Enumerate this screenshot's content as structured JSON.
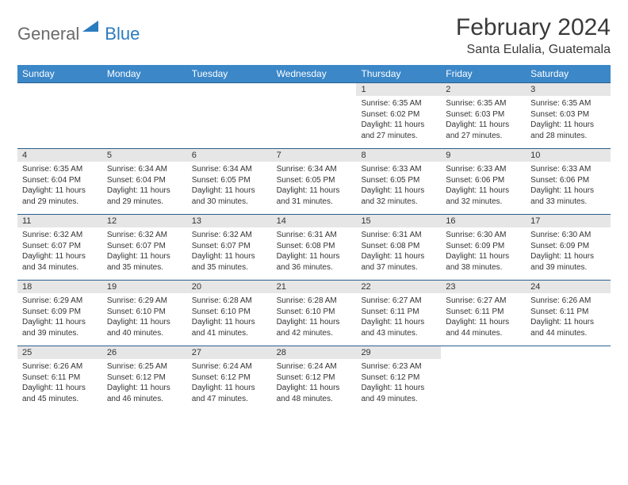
{
  "logo": {
    "part1": "General",
    "part2": "Blue"
  },
  "title": "February 2024",
  "location": "Santa Eulalia, Guatemala",
  "header_bg": "#3b87c8",
  "header_fg": "#ffffff",
  "daynum_bg": "#e6e6e6",
  "row_border": "#2b5f8f",
  "text_color": "#333333",
  "font_size_title": 30,
  "font_size_location": 16,
  "font_size_dow": 12,
  "font_size_day": 10,
  "dow": [
    "Sunday",
    "Monday",
    "Tuesday",
    "Wednesday",
    "Thursday",
    "Friday",
    "Saturday"
  ],
  "weeks": [
    [
      {
        "n": "",
        "sr": "",
        "ss": "",
        "dl": ""
      },
      {
        "n": "",
        "sr": "",
        "ss": "",
        "dl": ""
      },
      {
        "n": "",
        "sr": "",
        "ss": "",
        "dl": ""
      },
      {
        "n": "",
        "sr": "",
        "ss": "",
        "dl": ""
      },
      {
        "n": "1",
        "sr": "Sunrise: 6:35 AM",
        "ss": "Sunset: 6:02 PM",
        "dl": "Daylight: 11 hours and 27 minutes."
      },
      {
        "n": "2",
        "sr": "Sunrise: 6:35 AM",
        "ss": "Sunset: 6:03 PM",
        "dl": "Daylight: 11 hours and 27 minutes."
      },
      {
        "n": "3",
        "sr": "Sunrise: 6:35 AM",
        "ss": "Sunset: 6:03 PM",
        "dl": "Daylight: 11 hours and 28 minutes."
      }
    ],
    [
      {
        "n": "4",
        "sr": "Sunrise: 6:35 AM",
        "ss": "Sunset: 6:04 PM",
        "dl": "Daylight: 11 hours and 29 minutes."
      },
      {
        "n": "5",
        "sr": "Sunrise: 6:34 AM",
        "ss": "Sunset: 6:04 PM",
        "dl": "Daylight: 11 hours and 29 minutes."
      },
      {
        "n": "6",
        "sr": "Sunrise: 6:34 AM",
        "ss": "Sunset: 6:05 PM",
        "dl": "Daylight: 11 hours and 30 minutes."
      },
      {
        "n": "7",
        "sr": "Sunrise: 6:34 AM",
        "ss": "Sunset: 6:05 PM",
        "dl": "Daylight: 11 hours and 31 minutes."
      },
      {
        "n": "8",
        "sr": "Sunrise: 6:33 AM",
        "ss": "Sunset: 6:05 PM",
        "dl": "Daylight: 11 hours and 32 minutes."
      },
      {
        "n": "9",
        "sr": "Sunrise: 6:33 AM",
        "ss": "Sunset: 6:06 PM",
        "dl": "Daylight: 11 hours and 32 minutes."
      },
      {
        "n": "10",
        "sr": "Sunrise: 6:33 AM",
        "ss": "Sunset: 6:06 PM",
        "dl": "Daylight: 11 hours and 33 minutes."
      }
    ],
    [
      {
        "n": "11",
        "sr": "Sunrise: 6:32 AM",
        "ss": "Sunset: 6:07 PM",
        "dl": "Daylight: 11 hours and 34 minutes."
      },
      {
        "n": "12",
        "sr": "Sunrise: 6:32 AM",
        "ss": "Sunset: 6:07 PM",
        "dl": "Daylight: 11 hours and 35 minutes."
      },
      {
        "n": "13",
        "sr": "Sunrise: 6:32 AM",
        "ss": "Sunset: 6:07 PM",
        "dl": "Daylight: 11 hours and 35 minutes."
      },
      {
        "n": "14",
        "sr": "Sunrise: 6:31 AM",
        "ss": "Sunset: 6:08 PM",
        "dl": "Daylight: 11 hours and 36 minutes."
      },
      {
        "n": "15",
        "sr": "Sunrise: 6:31 AM",
        "ss": "Sunset: 6:08 PM",
        "dl": "Daylight: 11 hours and 37 minutes."
      },
      {
        "n": "16",
        "sr": "Sunrise: 6:30 AM",
        "ss": "Sunset: 6:09 PM",
        "dl": "Daylight: 11 hours and 38 minutes."
      },
      {
        "n": "17",
        "sr": "Sunrise: 6:30 AM",
        "ss": "Sunset: 6:09 PM",
        "dl": "Daylight: 11 hours and 39 minutes."
      }
    ],
    [
      {
        "n": "18",
        "sr": "Sunrise: 6:29 AM",
        "ss": "Sunset: 6:09 PM",
        "dl": "Daylight: 11 hours and 39 minutes."
      },
      {
        "n": "19",
        "sr": "Sunrise: 6:29 AM",
        "ss": "Sunset: 6:10 PM",
        "dl": "Daylight: 11 hours and 40 minutes."
      },
      {
        "n": "20",
        "sr": "Sunrise: 6:28 AM",
        "ss": "Sunset: 6:10 PM",
        "dl": "Daylight: 11 hours and 41 minutes."
      },
      {
        "n": "21",
        "sr": "Sunrise: 6:28 AM",
        "ss": "Sunset: 6:10 PM",
        "dl": "Daylight: 11 hours and 42 minutes."
      },
      {
        "n": "22",
        "sr": "Sunrise: 6:27 AM",
        "ss": "Sunset: 6:11 PM",
        "dl": "Daylight: 11 hours and 43 minutes."
      },
      {
        "n": "23",
        "sr": "Sunrise: 6:27 AM",
        "ss": "Sunset: 6:11 PM",
        "dl": "Daylight: 11 hours and 44 minutes."
      },
      {
        "n": "24",
        "sr": "Sunrise: 6:26 AM",
        "ss": "Sunset: 6:11 PM",
        "dl": "Daylight: 11 hours and 44 minutes."
      }
    ],
    [
      {
        "n": "25",
        "sr": "Sunrise: 6:26 AM",
        "ss": "Sunset: 6:11 PM",
        "dl": "Daylight: 11 hours and 45 minutes."
      },
      {
        "n": "26",
        "sr": "Sunrise: 6:25 AM",
        "ss": "Sunset: 6:12 PM",
        "dl": "Daylight: 11 hours and 46 minutes."
      },
      {
        "n": "27",
        "sr": "Sunrise: 6:24 AM",
        "ss": "Sunset: 6:12 PM",
        "dl": "Daylight: 11 hours and 47 minutes."
      },
      {
        "n": "28",
        "sr": "Sunrise: 6:24 AM",
        "ss": "Sunset: 6:12 PM",
        "dl": "Daylight: 11 hours and 48 minutes."
      },
      {
        "n": "29",
        "sr": "Sunrise: 6:23 AM",
        "ss": "Sunset: 6:12 PM",
        "dl": "Daylight: 11 hours and 49 minutes."
      },
      {
        "n": "",
        "sr": "",
        "ss": "",
        "dl": ""
      },
      {
        "n": "",
        "sr": "",
        "ss": "",
        "dl": ""
      }
    ]
  ]
}
